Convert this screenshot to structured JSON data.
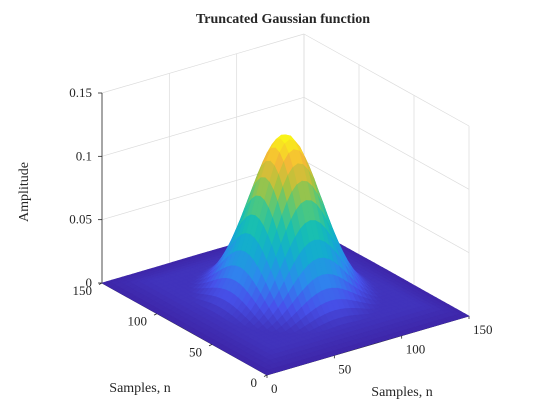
{
  "chart_data": {
    "type": "surface",
    "title": "Truncated Gaussian function",
    "xlabel": "Samples, n",
    "ylabel": "Samples, n",
    "zlabel": "Amplitude",
    "x_range": [
      0,
      150
    ],
    "y_range": [
      0,
      150
    ],
    "zlim": [
      0,
      0.15
    ],
    "x_ticks": [
      "0",
      "50",
      "100",
      "150"
    ],
    "y_ticks": [
      "0",
      "50",
      "100",
      "150"
    ],
    "z_ticks": [
      "0",
      "0.05",
      "0.1",
      "0.15"
    ],
    "grid": true,
    "colormap": "parula",
    "surface": {
      "peak_amplitude": 0.13,
      "center": [
        75,
        75
      ],
      "sigma": 21,
      "truncated_floor": 0.005
    }
  }
}
